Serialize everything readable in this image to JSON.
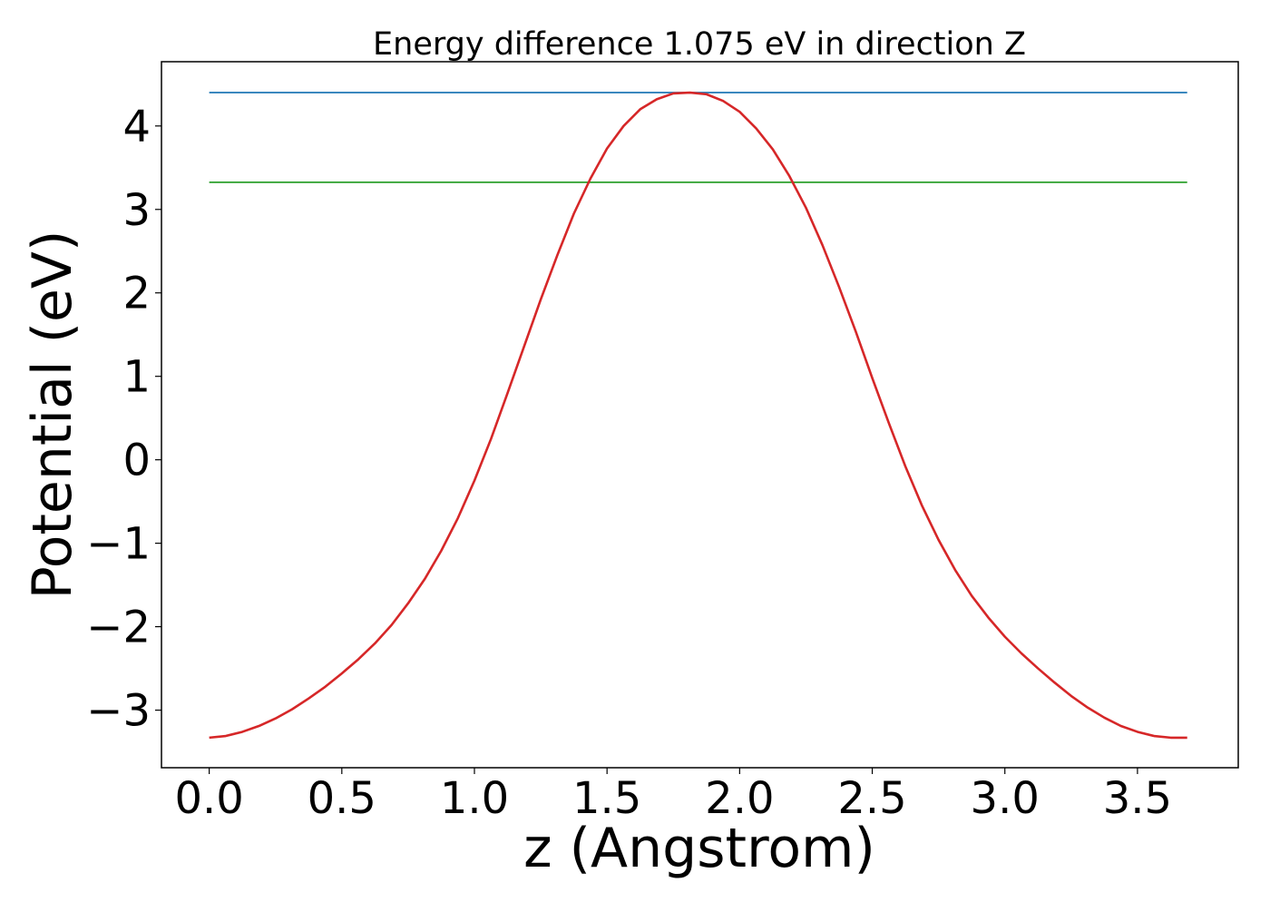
{
  "chart_data": {
    "type": "line",
    "title": "Energy difference 1.075 eV in direction Z",
    "xlabel": "z (Angstrom)",
    "ylabel": "Potential (eV)",
    "xlim": [
      -0.18,
      3.88
    ],
    "ylim": [
      -3.69,
      4.77
    ],
    "grid": false,
    "legend": "none",
    "xticks": [
      {
        "value": 0.0,
        "label": "0.0"
      },
      {
        "value": 0.5,
        "label": "0.5"
      },
      {
        "value": 1.0,
        "label": "1.0"
      },
      {
        "value": 1.5,
        "label": "1.5"
      },
      {
        "value": 2.0,
        "label": "2.0"
      },
      {
        "value": 2.5,
        "label": "2.5"
      },
      {
        "value": 3.0,
        "label": "3.0"
      },
      {
        "value": 3.5,
        "label": "3.5"
      }
    ],
    "yticks": [
      {
        "value": -3,
        "label": "−3"
      },
      {
        "value": -2,
        "label": "−2"
      },
      {
        "value": -1,
        "label": "−1"
      },
      {
        "value": 0,
        "label": "0"
      },
      {
        "value": 1,
        "label": "1"
      },
      {
        "value": 2,
        "label": "2"
      },
      {
        "value": 3,
        "label": "3"
      },
      {
        "value": 4,
        "label": "4"
      }
    ],
    "series": [
      {
        "color": "#d62728",
        "x": [
          0.0,
          0.0625,
          0.125,
          0.1875,
          0.25,
          0.3125,
          0.375,
          0.4375,
          0.5,
          0.5625,
          0.625,
          0.6875,
          0.75,
          0.8125,
          0.875,
          0.9375,
          1.0,
          1.0625,
          1.125,
          1.1875,
          1.25,
          1.3125,
          1.375,
          1.4375,
          1.5,
          1.5625,
          1.625,
          1.6875,
          1.75,
          1.8125,
          1.875,
          1.9375,
          2.0,
          2.0625,
          2.125,
          2.1875,
          2.25,
          2.3125,
          2.375,
          2.4375,
          2.5,
          2.5625,
          2.625,
          2.6875,
          2.75,
          2.8125,
          2.875,
          2.9375,
          3.0,
          3.0625,
          3.125,
          3.1875,
          3.25,
          3.3125,
          3.375,
          3.4375,
          3.5,
          3.5625,
          3.625,
          3.6875
        ],
        "y": [
          -3.33,
          -3.31,
          -3.26,
          -3.19,
          -3.1,
          -2.99,
          -2.86,
          -2.72,
          -2.56,
          -2.39,
          -2.2,
          -1.98,
          -1.72,
          -1.43,
          -1.09,
          -0.7,
          -0.25,
          0.25,
          0.8,
          1.36,
          1.92,
          2.45,
          2.95,
          3.37,
          3.73,
          4.0,
          4.2,
          4.32,
          4.39,
          4.4,
          4.38,
          4.3,
          4.17,
          3.97,
          3.72,
          3.4,
          3.02,
          2.57,
          2.07,
          1.54,
          0.98,
          0.44,
          -0.08,
          -0.55,
          -0.96,
          -1.32,
          -1.63,
          -1.89,
          -2.12,
          -2.32,
          -2.5,
          -2.67,
          -2.83,
          -2.97,
          -3.09,
          -3.19,
          -3.26,
          -3.31,
          -3.33,
          -3.33
        ]
      },
      {
        "color": "#1f77b4",
        "x": [
          0.0,
          3.6875
        ],
        "y": [
          4.4,
          4.4
        ]
      },
      {
        "color": "#2ca02c",
        "x": [
          0.0,
          3.6875
        ],
        "y": [
          3.325,
          3.325
        ]
      }
    ]
  }
}
